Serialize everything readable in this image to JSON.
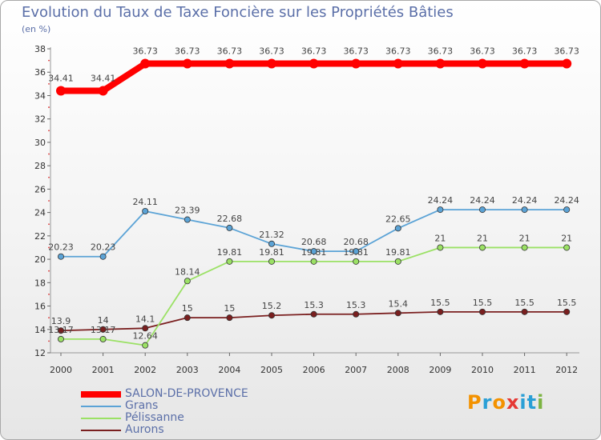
{
  "header": {
    "title": "Evolution du Taux de Taxe Foncière sur les Propriétés Bâties",
    "subtitle": "(en %)"
  },
  "chart_data": {
    "type": "line",
    "title": "Evolution du Taux de Taxe Foncière sur les Propriétés Bâties",
    "ylabel": "(en %)",
    "xlabel": "",
    "categories": [
      "2000",
      "2001",
      "2002",
      "2003",
      "2004",
      "2005",
      "2006",
      "2007",
      "2008",
      "2009",
      "2010",
      "2011",
      "2012"
    ],
    "ylim": [
      12,
      38
    ],
    "yticks": [
      12,
      14,
      16,
      18,
      20,
      22,
      24,
      26,
      28,
      30,
      32,
      34,
      36,
      38
    ],
    "grid": false,
    "series": [
      {
        "name": "SALON-DE-PROVENCE",
        "color": "#ff0000",
        "values": [
          34.41,
          34.41,
          36.73,
          36.73,
          36.73,
          36.73,
          36.73,
          36.73,
          36.73,
          36.73,
          36.73,
          36.73,
          36.73
        ],
        "labels": [
          "34.41",
          "34.41",
          "36.73",
          "36.73",
          "36.73",
          "36.73",
          "36.73",
          "36.73",
          "36.73",
          "36.73",
          "36.73",
          "36.73",
          "36.73"
        ]
      },
      {
        "name": "Grans",
        "color": "#5ba3d6",
        "values": [
          20.23,
          20.23,
          24.11,
          23.39,
          22.68,
          21.32,
          20.68,
          20.68,
          22.65,
          24.24,
          24.24,
          24.24,
          24.24
        ],
        "labels": [
          "20.23",
          "20.23",
          "24.11",
          "23.39",
          "22.68",
          "21.32",
          "20.68",
          "20.68",
          "22.65",
          "24.24",
          "24.24",
          "24.24",
          "24.24"
        ]
      },
      {
        "name": "Pélissanne",
        "color": "#9be165",
        "values": [
          13.17,
          13.17,
          12.64,
          18.14,
          19.81,
          19.81,
          19.81,
          19.81,
          19.81,
          21,
          21,
          21,
          21
        ],
        "labels": [
          "13.17",
          "13.17",
          "12.64",
          "18.14",
          "19.81",
          "19.81",
          "19.81",
          "19.81",
          "19.81",
          "21",
          "21",
          "21",
          "21"
        ]
      },
      {
        "name": "Aurons",
        "color": "#7a1f1f",
        "values": [
          13.9,
          14,
          14.1,
          15,
          15,
          15.2,
          15.3,
          15.3,
          15.4,
          15.5,
          15.5,
          15.5,
          15.5
        ],
        "labels": [
          "13.9",
          "14",
          "14.1",
          "15",
          "15",
          "15.2",
          "15.3",
          "15.3",
          "15.4",
          "15.5",
          "15.5",
          "15.5",
          "15.5"
        ]
      }
    ],
    "legend_position": "bottom-left"
  },
  "logo": {
    "text": "Proxiti",
    "letters": [
      "P",
      "r",
      "o",
      "x",
      "i",
      "t",
      "i"
    ],
    "colors": [
      "#f39200",
      "#2a9fd6",
      "#f39200",
      "#e53935",
      "#2a9fd6",
      "#2a9fd6",
      "#7cb342"
    ]
  }
}
